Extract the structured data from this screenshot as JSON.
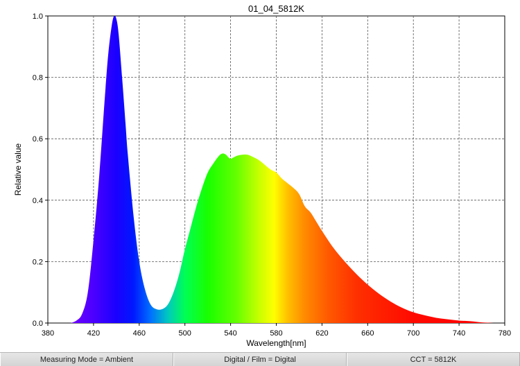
{
  "chart_data": {
    "type": "area",
    "title": "01_04_5812K",
    "xlabel": "Wavelength[nm]",
    "ylabel": "Relative value",
    "xlim": [
      380,
      780
    ],
    "ylim": [
      0,
      1.0
    ],
    "x_ticks": [
      380,
      420,
      460,
      500,
      540,
      580,
      620,
      660,
      700,
      740,
      780
    ],
    "x_tick_labels": [
      "380",
      "420",
      "460",
      "500",
      "540",
      "580",
      "620",
      "660",
      "700",
      "740",
      "780"
    ],
    "y_ticks": [
      0,
      0.2,
      0.4,
      0.6,
      0.8,
      1.0
    ],
    "y_tick_labels": [
      "0.0",
      "0.2",
      "0.4",
      "0.6",
      "0.8",
      "1.0"
    ],
    "grid": true,
    "series": [
      {
        "x": [
          400,
          405,
          410,
          415,
          420,
          425,
          430,
          433,
          436,
          438,
          440,
          442,
          445,
          448,
          450,
          455,
          460,
          465,
          470,
          475,
          480,
          485,
          490,
          495,
          500,
          505,
          510,
          515,
          520,
          525,
          530,
          533,
          536,
          538,
          540,
          543,
          546,
          550,
          555,
          560,
          565,
          570,
          575,
          580,
          585,
          590,
          595,
          600,
          605,
          610,
          615,
          620,
          630,
          640,
          650,
          660,
          670,
          680,
          690,
          700,
          710,
          720,
          730,
          740,
          745,
          750,
          755,
          760,
          765,
          770
        ],
        "y": [
          0.0,
          0.008,
          0.03,
          0.1,
          0.27,
          0.48,
          0.74,
          0.88,
          0.97,
          1.0,
          0.99,
          0.94,
          0.8,
          0.65,
          0.55,
          0.35,
          0.2,
          0.11,
          0.06,
          0.045,
          0.045,
          0.06,
          0.1,
          0.16,
          0.24,
          0.31,
          0.38,
          0.44,
          0.49,
          0.52,
          0.545,
          0.552,
          0.548,
          0.54,
          0.535,
          0.54,
          0.545,
          0.548,
          0.548,
          0.54,
          0.53,
          0.515,
          0.5,
          0.49,
          0.47,
          0.455,
          0.44,
          0.42,
          0.38,
          0.36,
          0.33,
          0.3,
          0.245,
          0.2,
          0.16,
          0.125,
          0.095,
          0.07,
          0.05,
          0.035,
          0.025,
          0.017,
          0.012,
          0.008,
          0.007,
          0.006,
          0.004,
          0.002,
          0.001,
          0.0
        ]
      }
    ]
  },
  "status_bar": [
    "Measuring Mode = Ambient",
    "Digital / Film = Digital",
    "CCT = 5812K"
  ]
}
